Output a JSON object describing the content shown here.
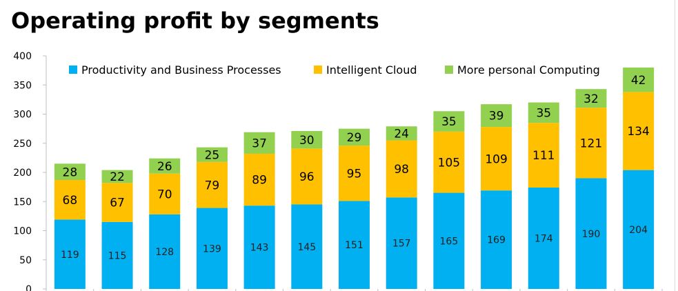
{
  "chart_data": {
    "type": "bar",
    "stacked": true,
    "title": "Operating profit by segments",
    "xlabel": "",
    "ylabel": "",
    "ylim": [
      0,
      400
    ],
    "yticks": [
      0,
      50,
      100,
      150,
      200,
      250,
      300,
      350,
      400
    ],
    "grid": false,
    "legend_position": "top",
    "categories": [
      "",
      "",
      "",
      "",
      "",
      "",
      "",
      "",
      "",
      "",
      "",
      "",
      ""
    ],
    "series": [
      {
        "name": "Productivity and Business Processes",
        "color": "#00b0f0",
        "values": [
          119,
          115,
          128,
          139,
          143,
          145,
          151,
          157,
          165,
          169,
          174,
          190,
          204
        ]
      },
      {
        "name": "Intelligent Cloud",
        "color": "#ffc000",
        "values": [
          68,
          67,
          70,
          79,
          89,
          96,
          95,
          98,
          105,
          109,
          111,
          121,
          134
        ]
      },
      {
        "name": "More personal Computing",
        "color": "#92d050",
        "values": [
          28,
          22,
          26,
          25,
          37,
          30,
          29,
          24,
          35,
          39,
          35,
          32,
          42
        ]
      }
    ]
  }
}
